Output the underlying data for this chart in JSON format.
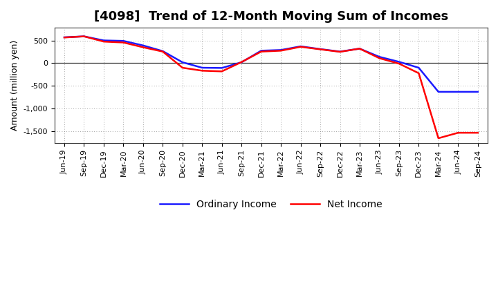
{
  "title": "[4098]  Trend of 12-Month Moving Sum of Incomes",
  "ylabel": "Amount (million yen)",
  "background_color": "#ffffff",
  "plot_bg_color": "#ffffff",
  "ordinary_income_color": "#1a1aff",
  "net_income_color": "#ff0000",
  "xlabels": [
    "Jun-19",
    "Sep-19",
    "Dec-19",
    "Mar-20",
    "Jun-20",
    "Sep-20",
    "Dec-20",
    "Mar-21",
    "Jun-21",
    "Sep-21",
    "Dec-21",
    "Mar-22",
    "Jun-22",
    "Sep-22",
    "Dec-22",
    "Mar-23",
    "Jun-23",
    "Sep-23",
    "Dec-23",
    "Mar-24",
    "Jun-24",
    "Sep-24"
  ],
  "ordinary_income": [
    570,
    590,
    500,
    490,
    390,
    265,
    20,
    -100,
    -105,
    20,
    275,
    290,
    370,
    310,
    255,
    320,
    140,
    30,
    -100,
    -630,
    -630,
    -630
  ],
  "net_income": [
    565,
    590,
    475,
    455,
    350,
    255,
    -100,
    -165,
    -180,
    25,
    255,
    275,
    360,
    305,
    250,
    320,
    110,
    -10,
    -220,
    -1650,
    -1530,
    -1530
  ],
  "ylim": [
    -1750,
    780
  ],
  "yticks": [
    -1500,
    -1000,
    -500,
    0,
    500
  ],
  "title_fontsize": 13,
  "axis_fontsize": 9,
  "tick_fontsize": 8,
  "legend_fontsize": 10,
  "line_width": 1.8
}
